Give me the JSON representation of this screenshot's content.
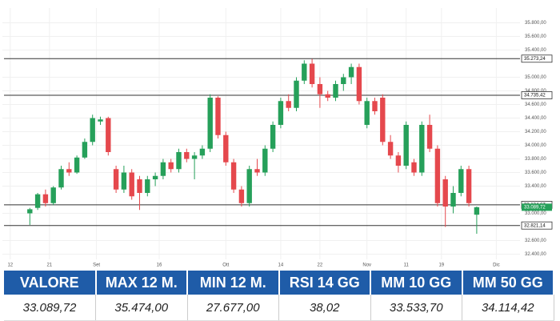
{
  "chart_data": {
    "type": "candlestick",
    "up_color": "#26a05a",
    "down_color": "#e5484d",
    "grid": true,
    "x": [
      0,
      1,
      2,
      3,
      4,
      5,
      6,
      7,
      8,
      9,
      10,
      11,
      12,
      13,
      14,
      15,
      16,
      17,
      18,
      19,
      20,
      21,
      22,
      23,
      24,
      25,
      26,
      27,
      28,
      29,
      30,
      31,
      32,
      33,
      34,
      35,
      36,
      37,
      38,
      39,
      40,
      41,
      42,
      43,
      44,
      45,
      46,
      47,
      48,
      49,
      50,
      51,
      52,
      53,
      54,
      55,
      56,
      57
    ],
    "open": [
      33000,
      33080,
      33280,
      33150,
      33380,
      33650,
      33600,
      33820,
      34050,
      34350,
      34400,
      33650,
      33350,
      33600,
      33500,
      33300,
      33500,
      33550,
      33750,
      33650,
      33900,
      33800,
      33850,
      33950,
      34700,
      34150,
      33750,
      33350,
      33150,
      33650,
      33600,
      33950,
      34300,
      34650,
      34550,
      34950,
      35200,
      34900,
      34750,
      34700,
      34900,
      35000,
      35150,
      34300,
      34650,
      34700,
      34050,
      33850,
      33700,
      33750,
      33600,
      34300,
      33950,
      33500,
      33100,
      33300,
      33650,
      32980
    ],
    "high": [
      33080,
      33300,
      33350,
      33400,
      33700,
      33750,
      33850,
      34100,
      34450,
      34420,
      34420,
      33700,
      33700,
      33650,
      33550,
      33550,
      33600,
      33800,
      33800,
      33950,
      33950,
      33900,
      34000,
      34750,
      34720,
      34200,
      33800,
      33400,
      33700,
      33800,
      34000,
      34350,
      34700,
      34750,
      35000,
      35250,
      35270,
      35000,
      34800,
      34950,
      35050,
      35200,
      35200,
      34700,
      34700,
      34750,
      34150,
      33900,
      34350,
      33800,
      34350,
      34450,
      34000,
      33550,
      33400,
      33700,
      33700,
      33100
    ],
    "low": [
      32830,
      33050,
      33100,
      33120,
      33350,
      33550,
      33580,
      33800,
      34000,
      34300,
      33850,
      33300,
      33300,
      33200,
      33050,
      33250,
      33400,
      33500,
      33600,
      33600,
      33750,
      33500,
      33800,
      33900,
      34100,
      33700,
      33300,
      33100,
      33100,
      33550,
      33550,
      33900,
      34250,
      34500,
      34500,
      34900,
      34850,
      34550,
      34650,
      34650,
      34800,
      34900,
      34600,
      34250,
      34450,
      34000,
      33800,
      33600,
      33650,
      33550,
      33550,
      33900,
      33100,
      32800,
      33000,
      33250,
      33100,
      32700
    ],
    "close": [
      33060,
      33280,
      33150,
      33380,
      33650,
      33600,
      33820,
      34050,
      34400,
      34380,
      33900,
      33350,
      33600,
      33250,
      33300,
      33500,
      33550,
      33750,
      33650,
      33900,
      33800,
      33850,
      33950,
      34700,
      34150,
      33750,
      33350,
      33150,
      33650,
      33600,
      33950,
      34300,
      34650,
      34550,
      34950,
      35200,
      34900,
      34750,
      34700,
      34900,
      35000,
      35150,
      34650,
      34650,
      34500,
      34050,
      33850,
      33700,
      34300,
      33600,
      34300,
      33950,
      33150,
      33100,
      33300,
      33650,
      33150,
      33089.72
    ],
    "xlim": [
      -3.5,
      61.5
    ],
    "xticks": [
      {
        "value": -2.5,
        "label": "12"
      },
      {
        "value": 2.5,
        "label": "21"
      },
      {
        "value": 8.5,
        "label": "Set"
      },
      {
        "value": 16.5,
        "label": "16"
      },
      {
        "value": 25,
        "label": "Ott"
      },
      {
        "value": 32,
        "label": "14"
      },
      {
        "value": 37,
        "label": "22"
      },
      {
        "value": 43,
        "label": "Nov"
      },
      {
        "value": 48,
        "label": "11"
      },
      {
        "value": 52.5,
        "label": "19"
      },
      {
        "value": 59.5,
        "label": "Dic"
      }
    ],
    "ylim": [
      32300,
      35900
    ],
    "yticks": [
      {
        "value": 35800,
        "label": "35.800,00"
      },
      {
        "value": 35600,
        "label": "35.600,00"
      },
      {
        "value": 35400,
        "label": "35.400,00"
      },
      {
        "value": 35000,
        "label": "35.000,00"
      },
      {
        "value": 34800,
        "label": "34.800,00"
      },
      {
        "value": 34600,
        "label": "34.600,00"
      },
      {
        "value": 34400,
        "label": "34.400,00"
      },
      {
        "value": 34200,
        "label": "34.200,00"
      },
      {
        "value": 34000,
        "label": "34.000,00"
      },
      {
        "value": 33800,
        "label": "33.800,00"
      },
      {
        "value": 33600,
        "label": "33.600,00"
      },
      {
        "value": 33400,
        "label": "33.400,00"
      },
      {
        "value": 33000,
        "label": "33.000,00"
      },
      {
        "value": 32600,
        "label": "32.600,00"
      },
      {
        "value": 32400,
        "label": "32.400,00"
      }
    ],
    "hlines": [
      {
        "value": 35273.24,
        "label": "35.273,24"
      },
      {
        "value": 34735.42,
        "label": "34.735,42"
      },
      {
        "value": 33124.67,
        "label": "33.124,67"
      },
      {
        "value": 32821.14,
        "label": "32.821,14"
      }
    ],
    "last_price": {
      "value": 33089.72,
      "label": "33.089,72"
    }
  },
  "table": {
    "headers": [
      "VALORE",
      "MAX 12 M.",
      "MIN 12 M.",
      "RSI 14 GG",
      "MM 10 GG",
      "MM 50 GG"
    ],
    "rows": [
      [
        "33.089,72",
        "35.474,00",
        "27.677,00",
        "38,02",
        "33.533,70",
        "34.114,42"
      ]
    ]
  }
}
